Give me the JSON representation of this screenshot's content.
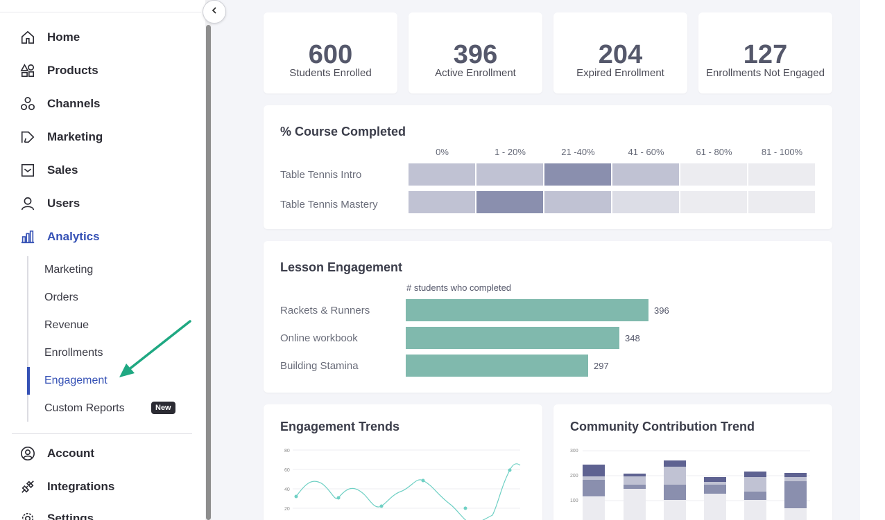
{
  "sidebar": {
    "nav": [
      {
        "label": "Home",
        "icon": "home-icon"
      },
      {
        "label": "Products",
        "icon": "shapes-icon"
      },
      {
        "label": "Channels",
        "icon": "channels-icon"
      },
      {
        "label": "Marketing",
        "icon": "megaphone-icon"
      },
      {
        "label": "Sales",
        "icon": "inbox-icon"
      },
      {
        "label": "Users",
        "icon": "user-icon"
      },
      {
        "label": "Analytics",
        "icon": "bar-chart-icon",
        "active": true
      }
    ],
    "analytics_sub": [
      {
        "label": "Marketing"
      },
      {
        "label": "Orders"
      },
      {
        "label": "Revenue"
      },
      {
        "label": "Enrollments"
      },
      {
        "label": "Engagement",
        "active": true
      },
      {
        "label": "Custom Reports",
        "badge": "New"
      }
    ],
    "bottom_nav": [
      {
        "label": "Account",
        "icon": "account-circle-icon"
      },
      {
        "label": "Integrations",
        "icon": "plug-icon"
      },
      {
        "label": "Settings",
        "icon": "gear-icon"
      }
    ]
  },
  "stats": [
    {
      "value": "600",
      "label": "Students Enrolled"
    },
    {
      "value": "396",
      "label": "Active Enrollment"
    },
    {
      "value": "204",
      "label": "Expired Enrollment"
    },
    {
      "value": "127",
      "label": "Enrollments Not Engaged"
    }
  ],
  "course_completed": {
    "title": "% Course Completed",
    "columns": [
      "0%",
      "1 - 20%",
      "21 -40%",
      "41 - 60%",
      "61 - 80%",
      "81 - 100%"
    ],
    "rows": [
      {
        "label": "Table Tennis Intro",
        "levels": [
          2,
          2,
          3,
          2,
          0,
          0
        ]
      },
      {
        "label": "Table Tennis Mastery",
        "levels": [
          2,
          3,
          2,
          1,
          0,
          0
        ]
      }
    ]
  },
  "lesson_engagement": {
    "title": "Lesson Engagement",
    "axis_label": "# students who completed",
    "max": 396,
    "lessons": [
      {
        "label": "Rackets & Runners",
        "value": 396
      },
      {
        "label": "Online workbook",
        "value": 348
      },
      {
        "label": "Building Stamina",
        "value": 297
      }
    ]
  },
  "engagement_trends": {
    "title": "Engagement Trends",
    "y_ticks": [
      "80",
      "60",
      "40",
      "20"
    ]
  },
  "community_trend": {
    "title": "Community Contribution Trend",
    "y_ticks": [
      "300",
      "200",
      "100"
    ]
  },
  "colors": {
    "accent": "#3551b5",
    "teal": "#80b9ad",
    "heat": [
      "#ececf0",
      "#dcdde6",
      "#c0c2d3",
      "#8a8fae"
    ]
  }
}
